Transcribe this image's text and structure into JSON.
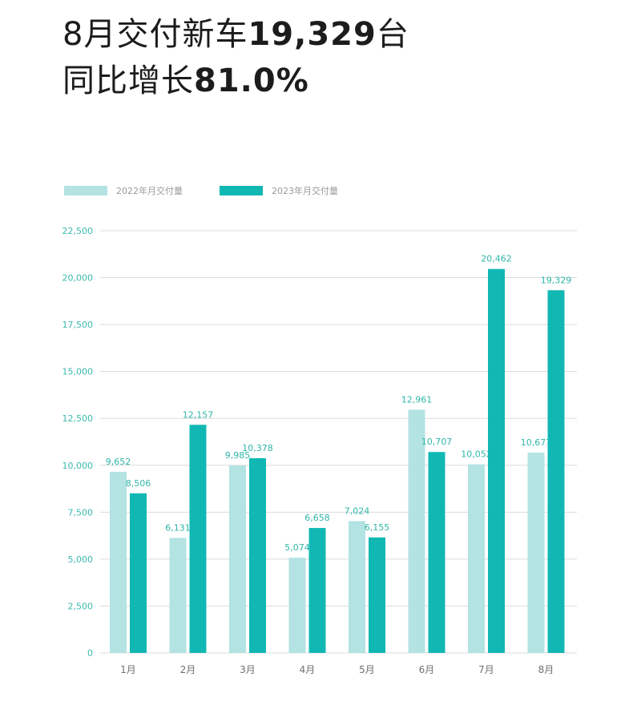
{
  "headline": {
    "line1_prefix": "8月交付新车",
    "line1_number": "19,329",
    "line1_suffix": "台",
    "line2_prefix": "同比增长",
    "line2_number": "81.0%"
  },
  "colors": {
    "series_2022": "#b3e3e2",
    "series_2023": "#11b8b3",
    "grid": "#dcdcdc",
    "axis_label": "#3bb9ad"
  },
  "chart_data": {
    "type": "bar",
    "title": "",
    "xlabel": "",
    "ylabel": "",
    "categories": [
      "1月",
      "2月",
      "3月",
      "4月",
      "5月",
      "6月",
      "7月",
      "8月"
    ],
    "series": [
      {
        "name": "2022年月交付量",
        "values": [
          9652,
          6131,
          9985,
          5074,
          7024,
          12961,
          10052,
          10677
        ]
      },
      {
        "name": "2023年月交付量",
        "values": [
          8506,
          12157,
          10378,
          6658,
          6155,
          10707,
          20462,
          19329
        ]
      }
    ],
    "data_labels": [
      [
        "9,652",
        "6,131",
        "9,985",
        "5,074",
        "7,024",
        "12,961",
        "10,052",
        "10,677"
      ],
      [
        "8,506",
        "12,157",
        "10,378",
        "6,658",
        "6,155",
        "10,707",
        "20,462",
        "19,329"
      ]
    ],
    "y_ticks": [
      0,
      2500,
      5000,
      7500,
      10000,
      12500,
      15000,
      17500,
      20000,
      22500
    ],
    "y_tick_labels": [
      "0",
      "2,500",
      "5,000",
      "7,500",
      "10,000",
      "12,500",
      "15,000",
      "17,500",
      "20,000",
      "22,500"
    ],
    "ylim": [
      0,
      22500
    ],
    "grid": true,
    "legend_position": "top-left"
  }
}
